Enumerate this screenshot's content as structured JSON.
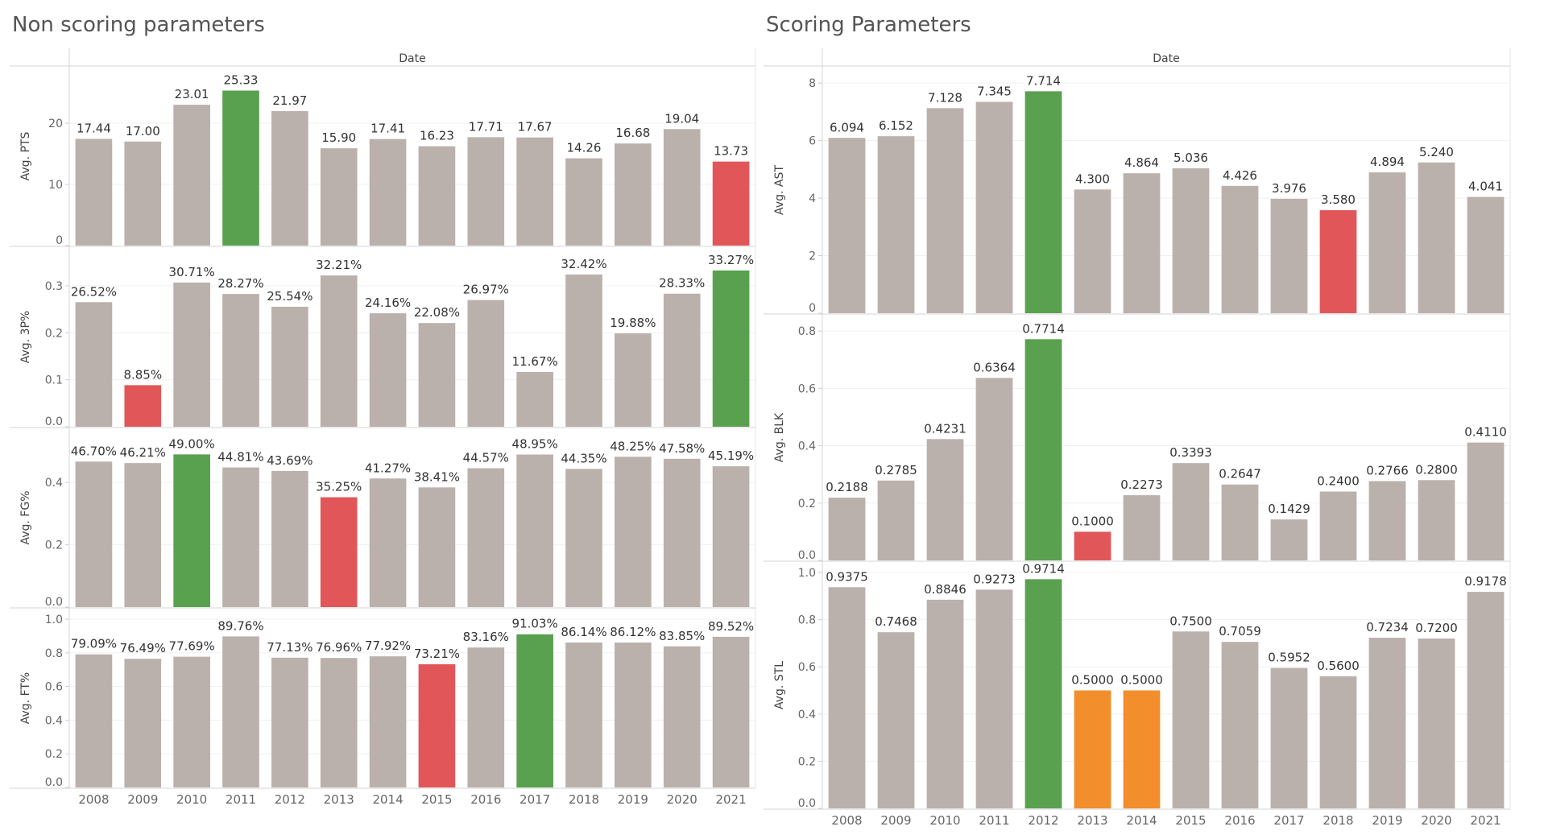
{
  "left": {
    "title": "Non scoring parameters",
    "header": "Date"
  },
  "right": {
    "title": "Scoring Parameters",
    "header": "Date"
  },
  "colors": {
    "default": "#bab0ac",
    "max": "#59a14f",
    "min": "#e15759",
    "tie": "#f28e2b"
  },
  "chart_data": [
    {
      "type": "bar",
      "group": "Non scoring parameters",
      "ylabel": "Avg. PTS",
      "categories": [
        "2008",
        "2009",
        "2010",
        "2011",
        "2012",
        "2013",
        "2014",
        "2015",
        "2016",
        "2017",
        "2018",
        "2019",
        "2020",
        "2021"
      ],
      "values": [
        17.44,
        17.0,
        23.01,
        25.33,
        21.97,
        15.9,
        17.41,
        16.23,
        17.71,
        17.67,
        14.26,
        16.68,
        19.04,
        13.73
      ],
      "labels": [
        "17.44",
        "17.00",
        "23.01",
        "25.33",
        "21.97",
        "15.90",
        "17.41",
        "16.23",
        "17.71",
        "17.67",
        "14.26",
        "16.68",
        "19.04",
        "13.73"
      ],
      "highlight": [
        "default",
        "default",
        "default",
        "max",
        "default",
        "default",
        "default",
        "default",
        "default",
        "default",
        "default",
        "default",
        "default",
        "min"
      ],
      "ylim": [
        0,
        27.5
      ],
      "yticks": [
        0,
        10,
        20
      ],
      "ytick_labels": [
        "0",
        "10",
        "20"
      ]
    },
    {
      "type": "bar",
      "group": "Non scoring parameters",
      "ylabel": "Avg. 3P%",
      "categories": [
        "2008",
        "2009",
        "2010",
        "2011",
        "2012",
        "2013",
        "2014",
        "2015",
        "2016",
        "2017",
        "2018",
        "2019",
        "2020",
        "2021"
      ],
      "values": [
        0.2652,
        0.0885,
        0.3071,
        0.2827,
        0.2554,
        0.3221,
        0.2416,
        0.2208,
        0.2697,
        0.1167,
        0.3242,
        0.1988,
        0.2833,
        0.3327
      ],
      "labels": [
        "26.52%",
        "8.85%",
        "30.71%",
        "28.27%",
        "25.54%",
        "32.21%",
        "24.16%",
        "22.08%",
        "26.97%",
        "11.67%",
        "32.42%",
        "19.88%",
        "28.33%",
        "33.27%"
      ],
      "highlight": [
        "default",
        "min",
        "default",
        "default",
        "default",
        "default",
        "default",
        "default",
        "default",
        "default",
        "default",
        "default",
        "default",
        "max"
      ],
      "ylim": [
        0,
        0.36
      ],
      "yticks": [
        0,
        0.1,
        0.2,
        0.3
      ],
      "ytick_labels": [
        "0.0",
        "0.1",
        "0.2",
        "0.3"
      ]
    },
    {
      "type": "bar",
      "group": "Non scoring parameters",
      "ylabel": "Avg. FG%",
      "categories": [
        "2008",
        "2009",
        "2010",
        "2011",
        "2012",
        "2013",
        "2014",
        "2015",
        "2016",
        "2017",
        "2018",
        "2019",
        "2020",
        "2021"
      ],
      "values": [
        0.467,
        0.4621,
        0.49,
        0.4481,
        0.4369,
        0.3525,
        0.4127,
        0.3841,
        0.4457,
        0.4895,
        0.4435,
        0.4825,
        0.4758,
        0.4519
      ],
      "labels": [
        "46.70%",
        "46.21%",
        "49.00%",
        "44.81%",
        "43.69%",
        "35.25%",
        "41.27%",
        "38.41%",
        "44.57%",
        "48.95%",
        "44.35%",
        "48.25%",
        "47.58%",
        "45.19%"
      ],
      "highlight": [
        "default",
        "default",
        "max",
        "default",
        "default",
        "min",
        "default",
        "default",
        "default",
        "default",
        "default",
        "default",
        "default",
        "default"
      ],
      "ylim": [
        0,
        0.54
      ],
      "yticks": [
        0,
        0.2,
        0.4
      ],
      "ytick_labels": [
        "0.0",
        "0.2",
        "0.4"
      ]
    },
    {
      "type": "bar",
      "group": "Non scoring parameters",
      "ylabel": "Avg. FT%",
      "categories": [
        "2008",
        "2009",
        "2010",
        "2011",
        "2012",
        "2013",
        "2014",
        "2015",
        "2016",
        "2017",
        "2018",
        "2019",
        "2020",
        "2021"
      ],
      "values": [
        0.7909,
        0.7649,
        0.7769,
        0.8976,
        0.7713,
        0.7696,
        0.7792,
        0.7321,
        0.8316,
        0.9103,
        0.8614,
        0.8612,
        0.8385,
        0.8952
      ],
      "labels": [
        "79.09%",
        "76.49%",
        "77.69%",
        "89.76%",
        "77.13%",
        "76.96%",
        "77.92%",
        "73.21%",
        "83.16%",
        "91.03%",
        "86.14%",
        "86.12%",
        "83.85%",
        "89.52%"
      ],
      "highlight": [
        "default",
        "default",
        "default",
        "default",
        "default",
        "default",
        "default",
        "min",
        "default",
        "max",
        "default",
        "default",
        "default",
        "default"
      ],
      "ylim": [
        0,
        1.0
      ],
      "yticks": [
        0,
        0.2,
        0.4,
        0.6,
        0.8,
        1.0
      ],
      "ytick_labels": [
        "0.0",
        "0.2",
        "0.4",
        "0.6",
        "0.8",
        "1.0"
      ]
    },
    {
      "type": "bar",
      "group": "Scoring Parameters",
      "ylabel": "Avg. AST",
      "categories": [
        "2008",
        "2009",
        "2010",
        "2011",
        "2012",
        "2013",
        "2014",
        "2015",
        "2016",
        "2017",
        "2018",
        "2019",
        "2020",
        "2021"
      ],
      "values": [
        6.094,
        6.152,
        7.128,
        7.345,
        7.714,
        4.3,
        4.864,
        5.036,
        4.426,
        3.976,
        3.58,
        4.894,
        5.24,
        4.041
      ],
      "labels": [
        "6.094",
        "6.152",
        "7.128",
        "7.345",
        "7.714",
        "4.300",
        "4.864",
        "5.036",
        "4.426",
        "3.976",
        "3.580",
        "4.894",
        "5.240",
        "4.041"
      ],
      "highlight": [
        "default",
        "default",
        "default",
        "default",
        "max",
        "default",
        "default",
        "default",
        "default",
        "default",
        "min",
        "default",
        "default",
        "default"
      ],
      "ylim": [
        0,
        8.2
      ],
      "yticks": [
        0,
        2,
        4,
        6,
        8
      ],
      "ytick_labels": [
        "0",
        "2",
        "4",
        "6",
        "8"
      ]
    },
    {
      "type": "bar",
      "group": "Scoring Parameters",
      "ylabel": "Avg. BLK",
      "categories": [
        "2008",
        "2009",
        "2010",
        "2011",
        "2012",
        "2013",
        "2014",
        "2015",
        "2016",
        "2017",
        "2018",
        "2019",
        "2020",
        "2021"
      ],
      "values": [
        0.2188,
        0.2785,
        0.4231,
        0.6364,
        0.7714,
        0.1,
        0.2273,
        0.3393,
        0.2647,
        0.1429,
        0.24,
        0.2766,
        0.28,
        0.411
      ],
      "labels": [
        "0.2188",
        "0.2785",
        "0.4231",
        "0.6364",
        "0.7714",
        "0.1000",
        "0.2273",
        "0.3393",
        "0.2647",
        "0.1429",
        "0.2400",
        "0.2766",
        "0.2800",
        "0.4110"
      ],
      "highlight": [
        "default",
        "default",
        "default",
        "default",
        "max",
        "min",
        "default",
        "default",
        "default",
        "default",
        "default",
        "default",
        "default",
        "default"
      ],
      "ylim": [
        0,
        0.82
      ],
      "yticks": [
        0,
        0.2,
        0.4,
        0.6,
        0.8
      ],
      "ytick_labels": [
        "0.0",
        "0.2",
        "0.4",
        "0.6",
        "0.8"
      ]
    },
    {
      "type": "bar",
      "group": "Scoring Parameters",
      "ylabel": "Avg. STL",
      "categories": [
        "2008",
        "2009",
        "2010",
        "2011",
        "2012",
        "2013",
        "2014",
        "2015",
        "2016",
        "2017",
        "2018",
        "2019",
        "2020",
        "2021"
      ],
      "values": [
        0.9375,
        0.7468,
        0.8846,
        0.9273,
        0.9714,
        0.5,
        0.5,
        0.75,
        0.7059,
        0.5952,
        0.56,
        0.7234,
        0.72,
        0.9178
      ],
      "labels": [
        "0.9375",
        "0.7468",
        "0.8846",
        "0.9273",
        "0.9714",
        "0.5000",
        "0.5000",
        "0.7500",
        "0.7059",
        "0.5952",
        "0.5600",
        "0.7234",
        "0.7200",
        "0.9178"
      ],
      "highlight": [
        "default",
        "default",
        "default",
        "default",
        "max",
        "tie",
        "tie",
        "default",
        "default",
        "default",
        "default",
        "default",
        "default",
        "default"
      ],
      "ylim": [
        0,
        1.0
      ],
      "yticks": [
        0,
        0.2,
        0.4,
        0.6,
        0.8,
        1.0
      ],
      "ytick_labels": [
        "0.0",
        "0.2",
        "0.4",
        "0.6",
        "0.8",
        "1.0"
      ]
    }
  ]
}
